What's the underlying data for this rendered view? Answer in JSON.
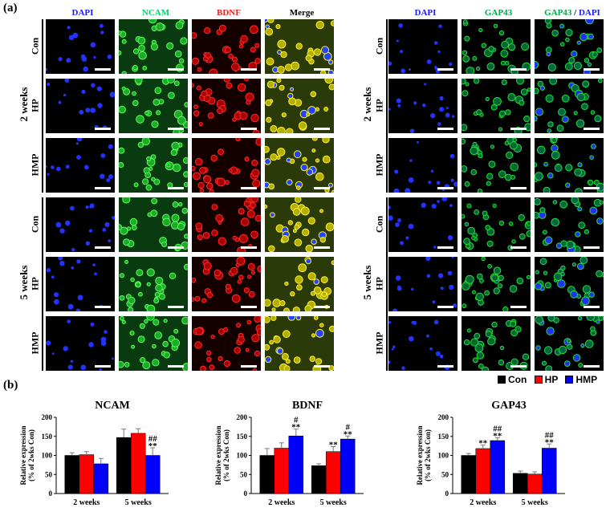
{
  "panel_a_label": "(a)",
  "panel_b_label": "(b)",
  "left_block": {
    "columns": [
      "DAPI",
      "NCAM",
      "BDNF",
      "Merge"
    ],
    "column_colors": [
      "#1a1aff",
      "#00d36a",
      "#ff1a1a",
      "#000000"
    ],
    "groups": [
      "2 weeks",
      "5 weeks"
    ],
    "rows": [
      "Con",
      "HP",
      "HMP"
    ]
  },
  "right_block": {
    "columns": [
      "DAPI",
      "GAP43",
      "GAP43 / DAPI"
    ],
    "columns_parts": {
      "gap": "GAP43",
      "slash": " / ",
      "dapi": "DAPI"
    },
    "groups": [
      "2 weeks",
      "5 weeks"
    ],
    "rows": [
      "Con",
      "HP",
      "HMP"
    ]
  },
  "legend": [
    {
      "label": "Con",
      "color": "#000000"
    },
    {
      "label": "HP",
      "color": "#ff0000"
    },
    {
      "label": "HMP",
      "color": "#0000ff"
    }
  ],
  "chart_data": [
    {
      "type": "bar",
      "title": "NCAM",
      "ylabel": "Relative expression\n(% of 2wks Con)",
      "ylabel_lines": [
        "Relative expression",
        "(% of 2wks Con)"
      ],
      "ylim": [
        0,
        200
      ],
      "yticks": [
        0,
        50,
        100,
        150,
        200
      ],
      "categories": [
        "2 weeks",
        "5 weeks"
      ],
      "series": [
        {
          "name": "Con",
          "color": "#000000",
          "values": [
            100,
            147
          ],
          "errors": [
            7,
            22
          ]
        },
        {
          "name": "HP",
          "color": "#ff0000",
          "values": [
            102,
            158
          ],
          "errors": [
            8,
            12
          ]
        },
        {
          "name": "HMP",
          "color": "#0000ff",
          "values": [
            78,
            100
          ],
          "errors": [
            14,
            20
          ]
        }
      ],
      "annotations": [
        {
          "category": 1,
          "series": 2,
          "lines": [
            "##",
            "**"
          ]
        }
      ]
    },
    {
      "type": "bar",
      "title": "BDNF",
      "ylabel": "Relative expression\n(% of 2wks Con)",
      "ylabel_lines": [
        "Relative expression",
        "(% of 2wks Con)"
      ],
      "ylim": [
        0,
        200
      ],
      "yticks": [
        0,
        50,
        100,
        150,
        200
      ],
      "categories": [
        "2 weeks",
        "5 weeks"
      ],
      "series": [
        {
          "name": "Con",
          "color": "#000000",
          "values": [
            100,
            73
          ],
          "errors": [
            18,
            5
          ]
        },
        {
          "name": "HP",
          "color": "#ff0000",
          "values": [
            119,
            110
          ],
          "errors": [
            14,
            13
          ]
        },
        {
          "name": "HMP",
          "color": "#0000ff",
          "values": [
            151,
            143
          ],
          "errors": [
            18,
            8
          ]
        }
      ],
      "annotations": [
        {
          "category": 0,
          "series": 2,
          "lines": [
            "#",
            "**"
          ]
        },
        {
          "category": 1,
          "series": 1,
          "lines": [
            "**"
          ]
        },
        {
          "category": 1,
          "series": 2,
          "lines": [
            "#",
            "**"
          ]
        }
      ]
    },
    {
      "type": "bar",
      "title": "GAP43",
      "ylabel": "Relative expression\n(% of 2wks Con)",
      "ylabel_lines": [
        "Relative expression",
        "(% of 2wks Con)"
      ],
      "ylim": [
        0,
        200
      ],
      "yticks": [
        0,
        50,
        100,
        150,
        200
      ],
      "categories": [
        "2 weeks",
        "5 weeks"
      ],
      "series": [
        {
          "name": "Con",
          "color": "#000000",
          "values": [
            100,
            53
          ],
          "errors": [
            5,
            6
          ]
        },
        {
          "name": "HP",
          "color": "#ff0000",
          "values": [
            118,
            51
          ],
          "errors": [
            9,
            6
          ]
        },
        {
          "name": "HMP",
          "color": "#0000ff",
          "values": [
            139,
            119
          ],
          "errors": [
            7,
            11
          ]
        }
      ],
      "annotations": [
        {
          "category": 0,
          "series": 1,
          "lines": [
            "**"
          ]
        },
        {
          "category": 0,
          "series": 2,
          "lines": [
            "##",
            "**"
          ]
        },
        {
          "category": 1,
          "series": 2,
          "lines": [
            "##",
            "**"
          ]
        }
      ]
    }
  ]
}
